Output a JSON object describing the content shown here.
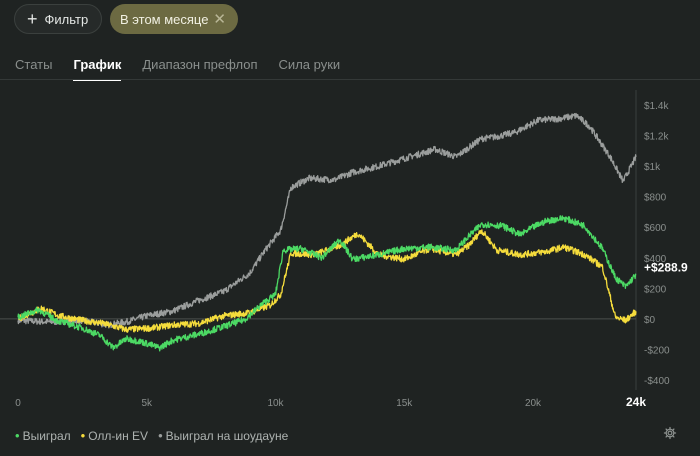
{
  "toolbar": {
    "filter_label": "Фильтр",
    "period_label": "В этом месяце"
  },
  "tabs": [
    "Статы",
    "График",
    "Диапазон префлоп",
    "Сила руки"
  ],
  "active_tab": "График",
  "legend": [
    {
      "label": "Выиграл",
      "color": "#4cd964"
    },
    {
      "label": "Олл-ин EV",
      "color": "#f5dc3c"
    },
    {
      "label": "Выиграл на шоудауне",
      "color": "#9a9d9c"
    }
  ],
  "chart_data": {
    "type": "line",
    "x_ticks": [
      "0",
      "5k",
      "10k",
      "15k",
      "20k",
      "24k"
    ],
    "x_tick_values": [
      0,
      5000,
      10000,
      15000,
      20000,
      24000
    ],
    "x_range": [
      0,
      24000
    ],
    "y_ticks": [
      "$1.4k",
      "$1.2k",
      "$1k",
      "$800",
      "$600",
      "$400",
      "$200",
      "$0",
      "-$200",
      "-$400"
    ],
    "y_tick_values": [
      1400,
      1200,
      1000,
      800,
      600,
      400,
      200,
      0,
      -200,
      -400
    ],
    "y_range": [
      -400,
      1400
    ],
    "end_label": "+$288.9",
    "grid": "zero line only",
    "series": [
      {
        "name": "Выиграл",
        "color": "#4cd964",
        "points": [
          [
            0,
            10
          ],
          [
            800,
            60
          ],
          [
            1500,
            -10
          ],
          [
            2500,
            -60
          ],
          [
            3200,
            -110
          ],
          [
            3700,
            -190
          ],
          [
            4200,
            -130
          ],
          [
            4800,
            -150
          ],
          [
            5500,
            -190
          ],
          [
            6000,
            -140
          ],
          [
            7000,
            -100
          ],
          [
            8000,
            -50
          ],
          [
            8800,
            -5
          ],
          [
            9500,
            100
          ],
          [
            10000,
            160
          ],
          [
            10300,
            450
          ],
          [
            11000,
            460
          ],
          [
            11800,
            400
          ],
          [
            12500,
            520
          ],
          [
            13000,
            390
          ],
          [
            14000,
            420
          ],
          [
            15000,
            460
          ],
          [
            16000,
            470
          ],
          [
            17000,
            450
          ],
          [
            17500,
            540
          ],
          [
            18000,
            620
          ],
          [
            18800,
            610
          ],
          [
            19500,
            550
          ],
          [
            20000,
            600
          ],
          [
            20500,
            640
          ],
          [
            21200,
            660
          ],
          [
            22000,
            610
          ],
          [
            22700,
            460
          ],
          [
            23200,
            270
          ],
          [
            23600,
            210
          ],
          [
            24000,
            290
          ]
        ]
      },
      {
        "name": "Олл-ин EV",
        "color": "#f5dc3c",
        "points": [
          [
            0,
            0
          ],
          [
            900,
            70
          ],
          [
            1600,
            20
          ],
          [
            2500,
            -10
          ],
          [
            3300,
            -30
          ],
          [
            4200,
            -70
          ],
          [
            5200,
            -60
          ],
          [
            6000,
            -40
          ],
          [
            7000,
            -30
          ],
          [
            8000,
            20
          ],
          [
            9000,
            40
          ],
          [
            9800,
            90
          ],
          [
            10200,
            160
          ],
          [
            10600,
            430
          ],
          [
            11500,
            420
          ],
          [
            12500,
            480
          ],
          [
            13200,
            560
          ],
          [
            14000,
            420
          ],
          [
            15000,
            390
          ],
          [
            16000,
            460
          ],
          [
            17000,
            420
          ],
          [
            17500,
            480
          ],
          [
            18000,
            580
          ],
          [
            18600,
            450
          ],
          [
            19500,
            420
          ],
          [
            20500,
            440
          ],
          [
            21200,
            470
          ],
          [
            22000,
            420
          ],
          [
            22700,
            340
          ],
          [
            23200,
            10
          ],
          [
            23600,
            -10
          ],
          [
            24000,
            50
          ]
        ]
      },
      {
        "name": "Выиграл на шоудауне",
        "color": "#9a9d9c",
        "points": [
          [
            0,
            -10
          ],
          [
            1200,
            -20
          ],
          [
            2500,
            -10
          ],
          [
            3500,
            -40
          ],
          [
            4200,
            -20
          ],
          [
            5000,
            20
          ],
          [
            6000,
            50
          ],
          [
            7000,
            120
          ],
          [
            8000,
            180
          ],
          [
            9000,
            300
          ],
          [
            9600,
            450
          ],
          [
            10200,
            580
          ],
          [
            10600,
            860
          ],
          [
            11300,
            920
          ],
          [
            12300,
            910
          ],
          [
            13000,
            960
          ],
          [
            14000,
            1000
          ],
          [
            15000,
            1050
          ],
          [
            16200,
            1110
          ],
          [
            17000,
            1060
          ],
          [
            18000,
            1180
          ],
          [
            18500,
            1190
          ],
          [
            19300,
            1220
          ],
          [
            20200,
            1300
          ],
          [
            21000,
            1310
          ],
          [
            21700,
            1330
          ],
          [
            22200,
            1260
          ],
          [
            23000,
            1060
          ],
          [
            23500,
            900
          ],
          [
            24000,
            1060
          ]
        ]
      }
    ]
  }
}
